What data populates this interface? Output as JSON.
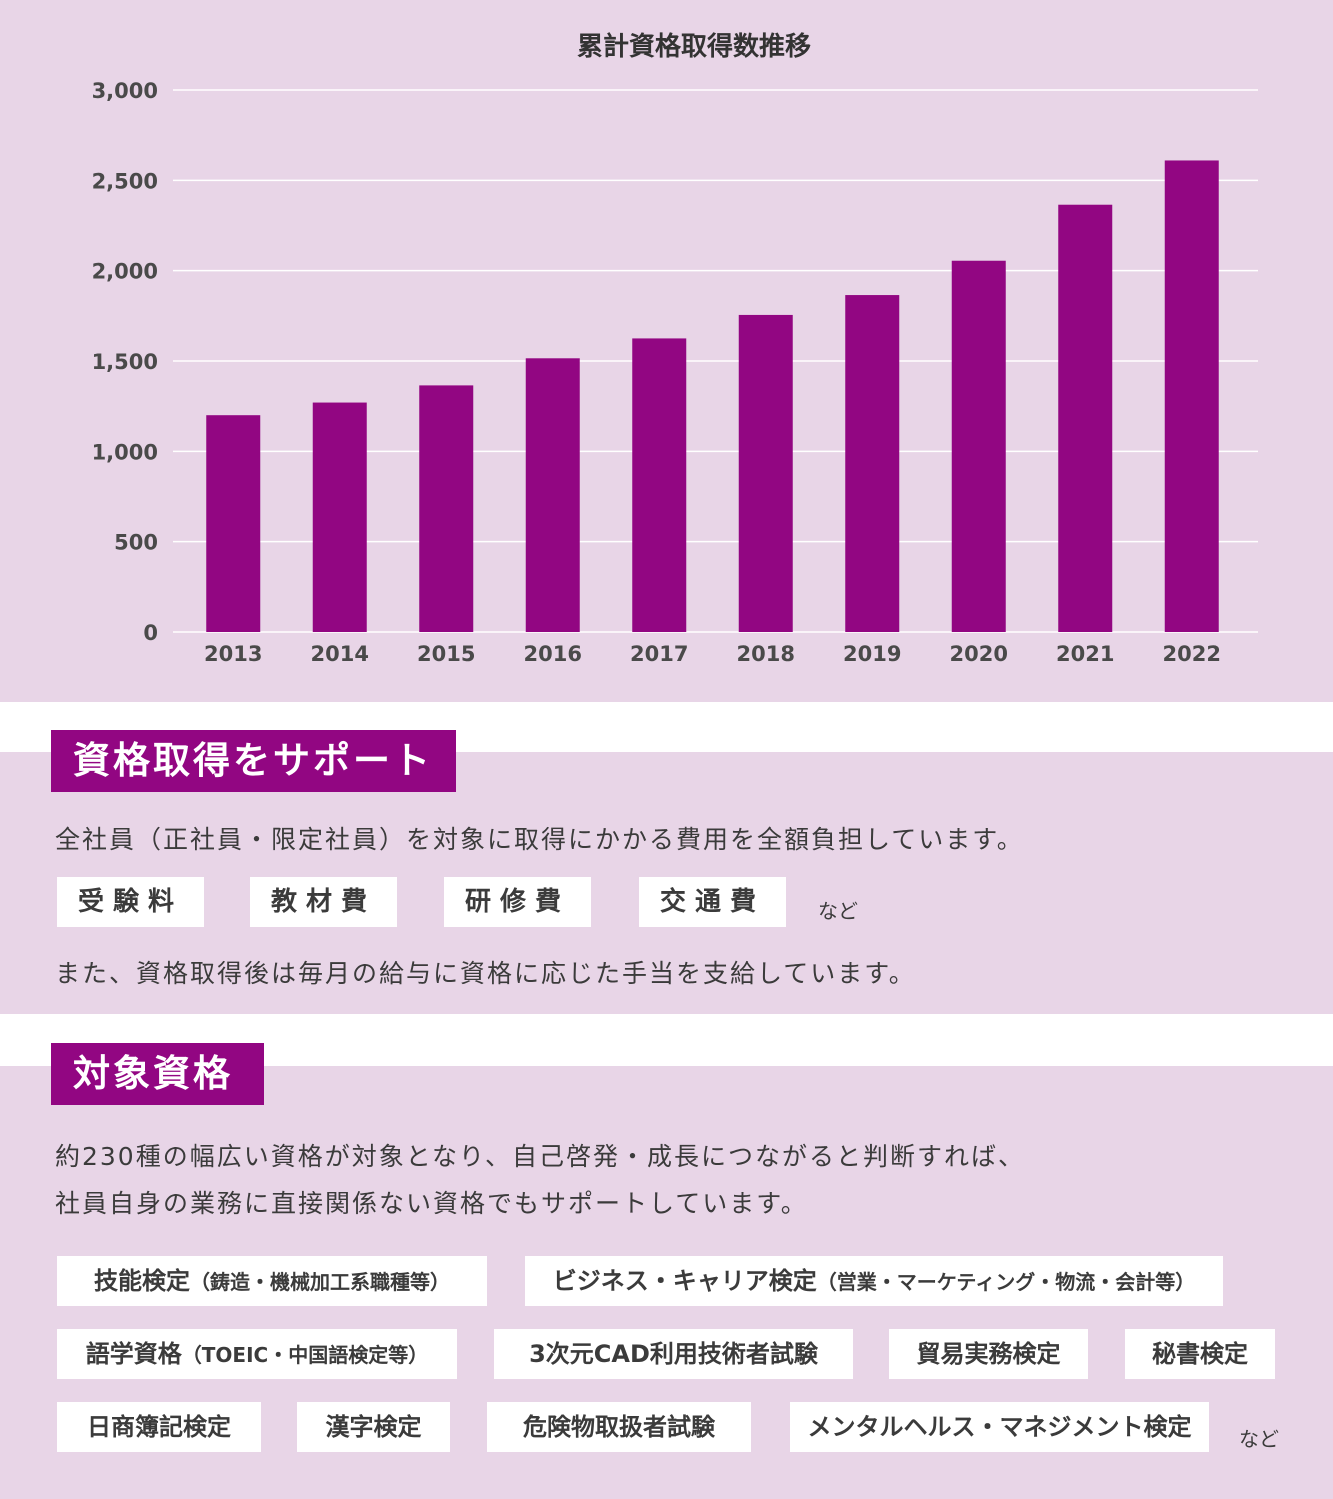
{
  "chart_data": {
    "type": "bar",
    "title": "累計資格取得数推移",
    "categories": [
      "2013",
      "2014",
      "2015",
      "2016",
      "2017",
      "2018",
      "2019",
      "2020",
      "2021",
      "2022"
    ],
    "values": [
      1200,
      1270,
      1365,
      1515,
      1625,
      1755,
      1865,
      2055,
      2365,
      2610
    ],
    "ylim": [
      0,
      3000
    ],
    "yticks": [
      0,
      500,
      1000,
      1500,
      2000,
      2500,
      3000
    ],
    "ytick_labels": [
      "0",
      "500",
      "1,000",
      "1,500",
      "2,000",
      "2,500",
      "3,000"
    ],
    "grid": true,
    "bar_color": "#920682",
    "grid_color": "#ffffff"
  },
  "support": {
    "heading": "資格取得をサポート",
    "description": "全社員（正社員・限定社員）を対象に取得にかかる費用を全額負担しています。",
    "tags": [
      "受験料",
      "教材費",
      "研修費",
      "交通費"
    ],
    "etc": "など",
    "allowance": "また、資格取得後は毎月の給与に資格に応じた手当を支給しています。"
  },
  "target": {
    "heading": "対象資格",
    "line1": "約230種の幅広い資格が対象となり、自己啓発・成長につながると判断すれば、",
    "line2": "社員自身の業務に直接関係ない資格でもサポートしています。",
    "q1_main": "技能検定",
    "q1_sub": "（鋳造・機械加工系職種等）",
    "q2_main": "ビジネス・キャリア検定",
    "q2_sub": "（営業・マーケティング・物流・会計等）",
    "q3_main": "語学資格",
    "q3_sub": "（TOEIC・中国語検定等）",
    "q4": "3次元CAD利用技術者試験",
    "q5": "貿易実務検定",
    "q6": "秘書検定",
    "q7": "日商簿記検定",
    "q8": "漢字検定",
    "q9": "危険物取扱者試験",
    "q10": "メンタルヘルス・マネジメント検定",
    "etc": "など"
  },
  "colors": {
    "accent": "#920682",
    "panel_bg": "#e8d5e7",
    "tag_bg": "#ffffff"
  }
}
